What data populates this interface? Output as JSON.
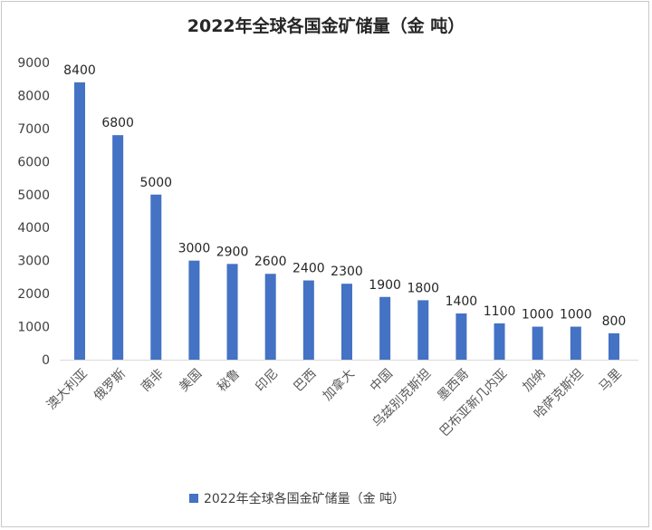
{
  "chart_data": {
    "type": "bar",
    "title": "2022年全球各国金矿储量（金 吨）",
    "xlabel": "",
    "ylabel": "",
    "ylim": [
      0,
      9000
    ],
    "yticks": [
      0,
      1000,
      2000,
      3000,
      4000,
      5000,
      6000,
      7000,
      8000,
      9000
    ],
    "categories": [
      "澳大利亚",
      "俄罗斯",
      "南非",
      "美国",
      "秘鲁",
      "印尼",
      "巴西",
      "加拿大",
      "中国",
      "乌兹别克斯坦",
      "墨西哥",
      "巴布亚新几内亚",
      "加纳",
      "哈萨克斯坦",
      "马里"
    ],
    "series": [
      {
        "name": "2022年全球各国金矿储量（金 吨）",
        "values": [
          8400,
          6800,
          5000,
          3000,
          2900,
          2600,
          2400,
          2300,
          1900,
          1800,
          1400,
          1100,
          1000,
          1000,
          800
        ],
        "color": "#4472C4"
      }
    ],
    "grid": false,
    "legend_position": "bottom",
    "data_labels": true
  }
}
